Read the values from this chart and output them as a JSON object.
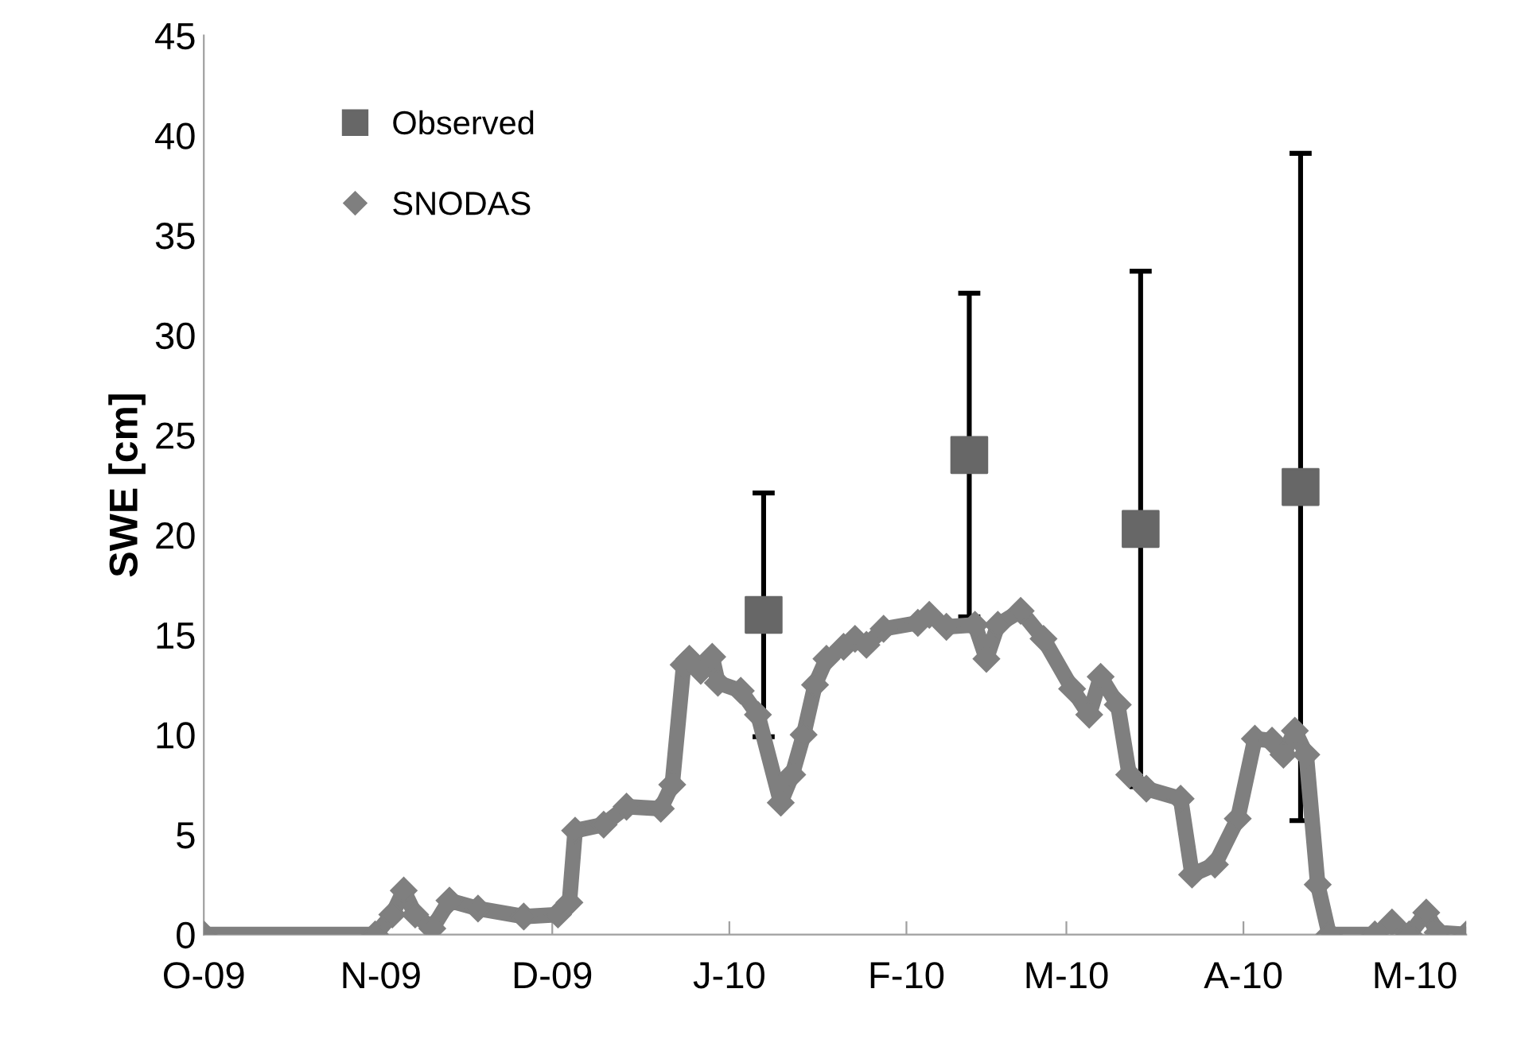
{
  "chart_data": {
    "type": "line",
    "ylabel": "SWE [cm]",
    "ylim": [
      0,
      45
    ],
    "yticks": [
      0,
      5,
      10,
      15,
      20,
      25,
      30,
      35,
      40,
      45
    ],
    "xlim": [
      "2009-10-01",
      "2010-05-10"
    ],
    "xticks": [
      {
        "value": "2009-10-01",
        "label": "O-09"
      },
      {
        "value": "2009-11-01",
        "label": "N-09"
      },
      {
        "value": "2009-12-01",
        "label": "D-09"
      },
      {
        "value": "2010-01-01",
        "label": "J-10"
      },
      {
        "value": "2010-02-01",
        "label": "F-10"
      },
      {
        "value": "2010-03-01",
        "label": "M-10"
      },
      {
        "value": "2010-04-01",
        "label": "A-10"
      },
      {
        "value": "2010-05-01",
        "label": "M-10"
      }
    ],
    "grid": false,
    "legend": "top left",
    "series": [
      {
        "name": "Observed",
        "type": "scatter",
        "marker": "square",
        "color": "#676767",
        "x": [
          "2010-01-07",
          "2010-02-12",
          "2010-03-14",
          "2010-04-11"
        ],
        "values": [
          16.0,
          24.0,
          20.3,
          22.4
        ],
        "errors": [
          6.1,
          8.1,
          12.9,
          16.7
        ]
      },
      {
        "name": "SNODAS",
        "marker": "diamond",
        "color": "#7f7f7f",
        "x": [
          "2009-10-01",
          "2009-10-31",
          "2009-11-03",
          "2009-11-05",
          "2009-11-07",
          "2009-11-10",
          "2009-11-13",
          "2009-11-18",
          "2009-11-26",
          "2009-12-02",
          "2009-12-04",
          "2009-12-05",
          "2009-12-10",
          "2009-12-14",
          "2009-12-20",
          "2009-12-22",
          "2009-12-24",
          "2009-12-25",
          "2009-12-27",
          "2009-12-29",
          "2009-12-30",
          "2010-01-03",
          "2010-01-06",
          "2010-01-10",
          "2010-01-12",
          "2010-01-14",
          "2010-01-16",
          "2010-01-18",
          "2010-01-21",
          "2010-01-23",
          "2010-01-25",
          "2010-01-28",
          "2010-02-03",
          "2010-02-05",
          "2010-02-08",
          "2010-02-13",
          "2010-02-15",
          "2010-02-17",
          "2010-02-21",
          "2010-02-25",
          "2010-03-02",
          "2010-03-05",
          "2010-03-07",
          "2010-03-10",
          "2010-03-12",
          "2010-03-15",
          "2010-03-21",
          "2010-03-23",
          "2010-03-27",
          "2010-03-31",
          "2010-04-03",
          "2010-04-06",
          "2010-04-08",
          "2010-04-10",
          "2010-04-12",
          "2010-04-14",
          "2010-04-16",
          "2010-04-24",
          "2010-04-27",
          "2010-04-30",
          "2010-05-03",
          "2010-05-05",
          "2010-05-10"
        ],
        "values": [
          0,
          0,
          1.0,
          2.2,
          1.0,
          0.3,
          1.7,
          1.3,
          0.9,
          1.0,
          1.6,
          5.2,
          5.5,
          6.4,
          6.3,
          7.5,
          13.5,
          13.8,
          13.2,
          13.9,
          12.6,
          12.2,
          11.0,
          6.6,
          8.0,
          10.0,
          12.5,
          13.8,
          14.4,
          14.8,
          14.5,
          15.3,
          15.6,
          16.0,
          15.4,
          15.5,
          13.8,
          15.5,
          16.2,
          14.8,
          12.3,
          11.0,
          12.9,
          11.5,
          8.0,
          7.3,
          6.8,
          3.0,
          3.5,
          5.8,
          9.8,
          9.7,
          9.0,
          10.2,
          9.0,
          2.5,
          0,
          0,
          0.6,
          0,
          1.1,
          0.1,
          0
        ]
      }
    ]
  }
}
